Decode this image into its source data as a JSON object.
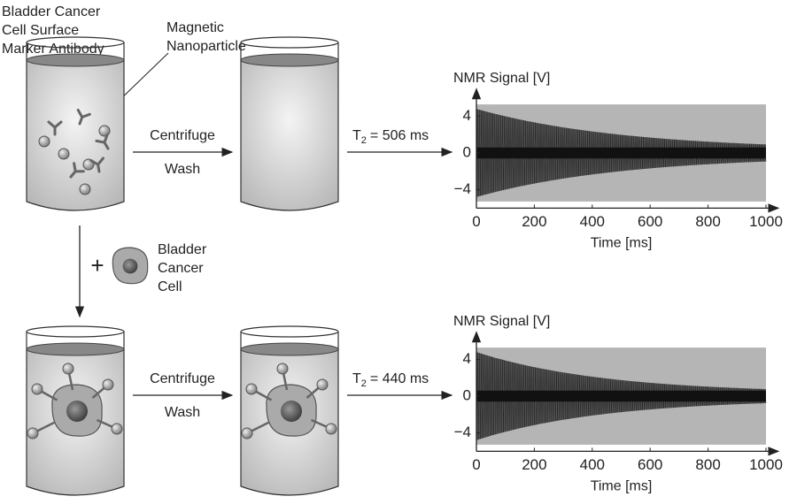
{
  "labels": {
    "antibody": [
      "Bladder Cancer",
      "Cell Surface",
      "Marker Antibody"
    ],
    "nanoparticle": [
      "Magnetic",
      "Nanoparticle"
    ],
    "cell": [
      "Bladder",
      "Cancer",
      "Cell"
    ],
    "plus": "+"
  },
  "rows": [
    {
      "step": [
        "Centrifuge",
        "Wash"
      ],
      "t2": {
        "symbol": "T",
        "subscript": "2",
        "value": 506,
        "label": "= 506 ms"
      }
    },
    {
      "step": [
        "Centrifuge",
        "Wash"
      ],
      "t2": {
        "symbol": "T",
        "subscript": "2",
        "value": 440,
        "label": "= 440 ms"
      }
    }
  ],
  "chart_data": [
    {
      "type": "fid",
      "y_label": "NMR Signal [V]",
      "x_label": "Time [ms]",
      "xlim": [
        0,
        1000
      ],
      "xticks": [
        0,
        200,
        400,
        600,
        800,
        1000
      ],
      "ylim": [
        -6,
        6
      ],
      "yticks": [
        {
          "value": -4,
          "label": "−4"
        },
        0,
        4
      ]
    },
    {
      "type": "fid",
      "y_label": "NMR Signal [V]",
      "x_label": "Time [ms]",
      "xlim": [
        0,
        1000
      ],
      "xticks": [
        0,
        200,
        400,
        600,
        800,
        1000
      ],
      "ylim": [
        -6,
        6
      ],
      "yticks": [
        {
          "value": -4,
          "label": "−4"
        },
        0,
        4
      ]
    }
  ]
}
